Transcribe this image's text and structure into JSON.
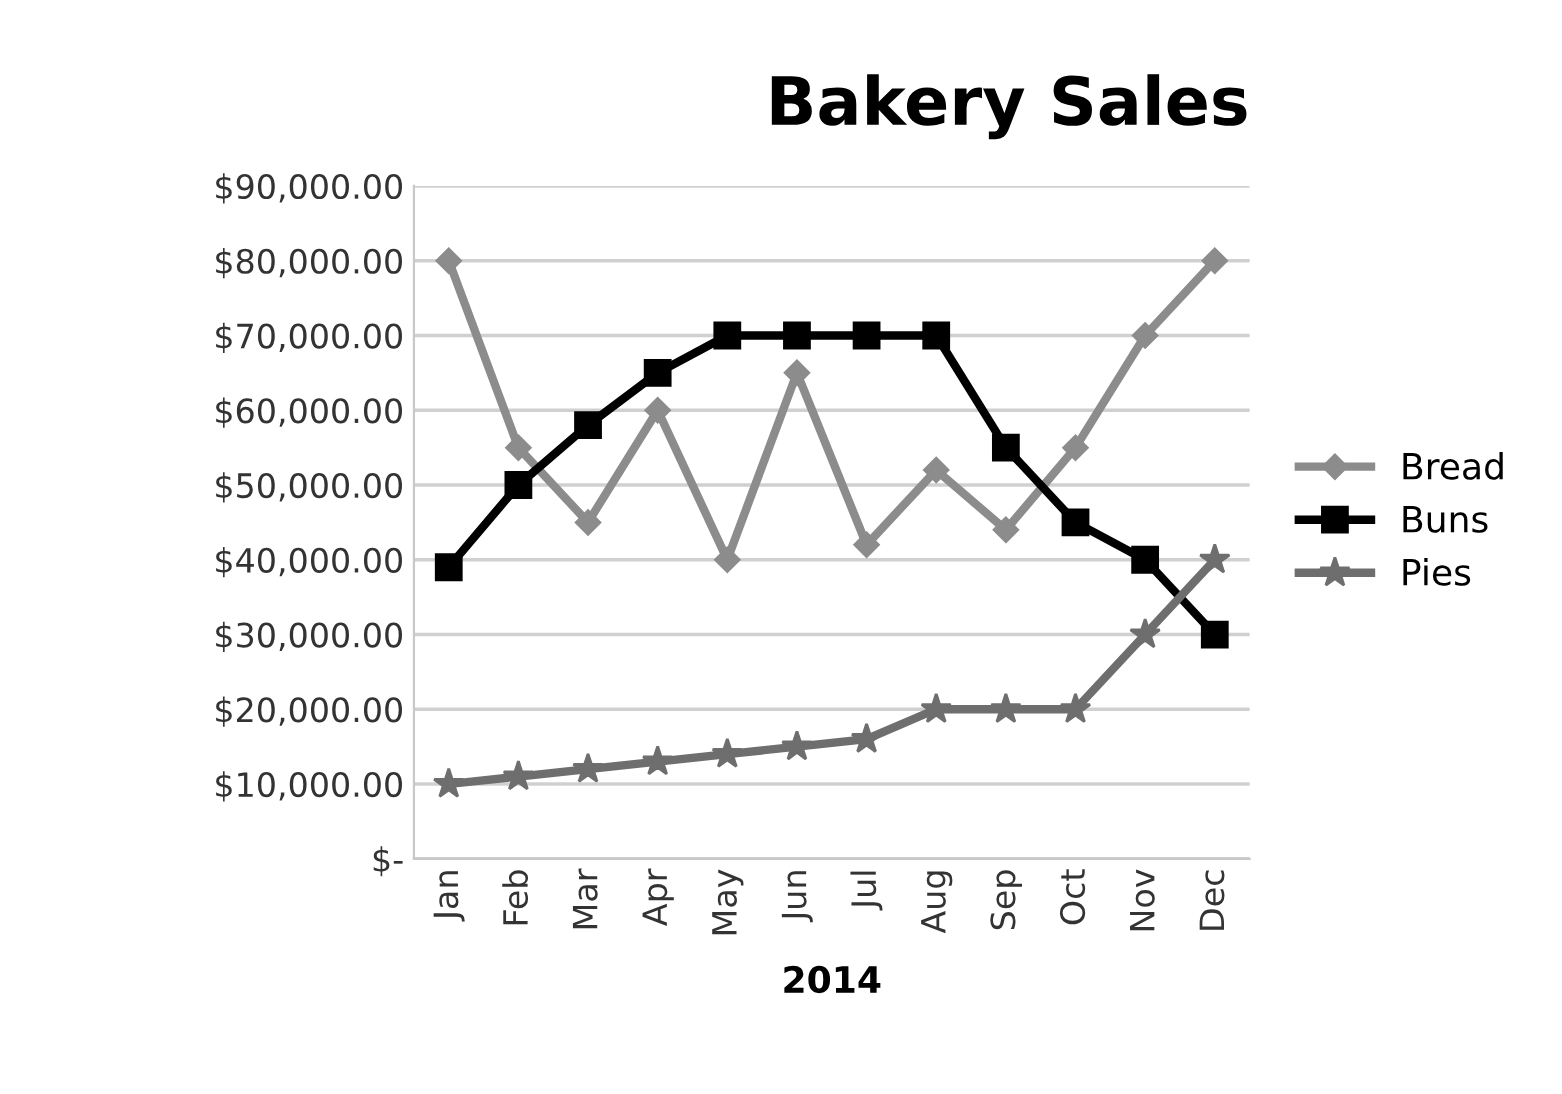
{
  "chart_data": {
    "type": "line",
    "title": "Bakery Sales",
    "xlabel": "2014",
    "categories": [
      "Jan",
      "Feb",
      "Mar",
      "Apr",
      "May",
      "Jun",
      "Jul",
      "Aug",
      "Sep",
      "Oct",
      "Nov",
      "Dec"
    ],
    "series": [
      {
        "name": "Bread",
        "color": "#8c8c8c",
        "marker": "diamond",
        "values": [
          80000,
          55000,
          45000,
          60000,
          40000,
          65000,
          42000,
          52000,
          44000,
          55000,
          70000,
          80000
        ]
      },
      {
        "name": "Buns",
        "color": "#000000",
        "marker": "square",
        "values": [
          39000,
          50000,
          58000,
          65000,
          70000,
          70000,
          70000,
          70000,
          55000,
          45000,
          40000,
          30000
        ]
      },
      {
        "name": "Pies",
        "color": "#6e6e6e",
        "marker": "star",
        "values": [
          10000,
          11000,
          12000,
          13000,
          14000,
          15000,
          16000,
          20000,
          20000,
          20000,
          30000,
          40000
        ]
      }
    ],
    "ylim": [
      0,
      90000
    ],
    "yticks": [
      {
        "value": 0,
        "label": "$-"
      },
      {
        "value": 10000,
        "label": "$10,000.00"
      },
      {
        "value": 20000,
        "label": "$20,000.00"
      },
      {
        "value": 30000,
        "label": "$30,000.00"
      },
      {
        "value": 40000,
        "label": "$40,000.00"
      },
      {
        "value": 50000,
        "label": "$50,000.00"
      },
      {
        "value": 60000,
        "label": "$60,000.00"
      },
      {
        "value": 70000,
        "label": "$70,000.00"
      },
      {
        "value": 80000,
        "label": "$80,000.00"
      },
      {
        "value": 90000,
        "label": "$90,000.00"
      }
    ],
    "grid": "y",
    "legend": "right",
    "line_style": "solid"
  }
}
